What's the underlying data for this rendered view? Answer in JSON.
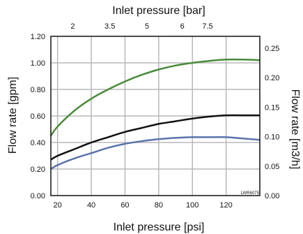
{
  "chart_data": {
    "type": "line",
    "title": "",
    "xlabel": "Inlet pressure [psi]",
    "x2label": "Inlet pressure [bar]",
    "ylabel": "Flow rate [gpm]",
    "y2label": "Flow rate [m3/h]",
    "xlim": [
      16,
      140
    ],
    "ylim": [
      0,
      1.2
    ],
    "y2lim": [
      0,
      0.27
    ],
    "grid": true,
    "x_ticks": [
      "20",
      "40",
      "60",
      "80",
      "100",
      "120"
    ],
    "x_tick_values": [
      20,
      40,
      60,
      80,
      100,
      120
    ],
    "x2_ticks": [
      "2",
      "3.5",
      "5",
      "6",
      "7.5"
    ],
    "x2_tick_values_psi": [
      29,
      51,
      73,
      94,
      109
    ],
    "y_ticks": [
      "0.00",
      "0.20",
      "0.40",
      "0.60",
      "0.80",
      "1.00",
      "1.20"
    ],
    "y_tick_values": [
      0,
      0.2,
      0.4,
      0.6,
      0.8,
      1.0,
      1.2
    ],
    "y2_ticks": [
      "0.00",
      "0.05",
      "0.10",
      "0.15",
      "0.20",
      "0.25"
    ],
    "y2_tick_values": [
      0,
      0.05,
      0.1,
      0.15,
      0.2,
      0.25
    ],
    "annotation": "LWR6075",
    "x": [
      16,
      20,
      30,
      40,
      50,
      60,
      70,
      80,
      90,
      100,
      110,
      120,
      130,
      140
    ],
    "series": [
      {
        "color": "#4a8a3a",
        "values": [
          0.45,
          0.52,
          0.64,
          0.73,
          0.8,
          0.86,
          0.91,
          0.95,
          0.98,
          1.0,
          1.015,
          1.025,
          1.025,
          1.02
        ]
      },
      {
        "color": "#111111",
        "values": [
          0.27,
          0.3,
          0.35,
          0.4,
          0.44,
          0.48,
          0.51,
          0.54,
          0.56,
          0.58,
          0.595,
          0.605,
          0.605,
          0.605
        ]
      },
      {
        "color": "#5b73aa",
        "values": [
          0.2,
          0.23,
          0.28,
          0.32,
          0.36,
          0.39,
          0.41,
          0.425,
          0.435,
          0.44,
          0.44,
          0.44,
          0.43,
          0.42
        ]
      }
    ]
  }
}
